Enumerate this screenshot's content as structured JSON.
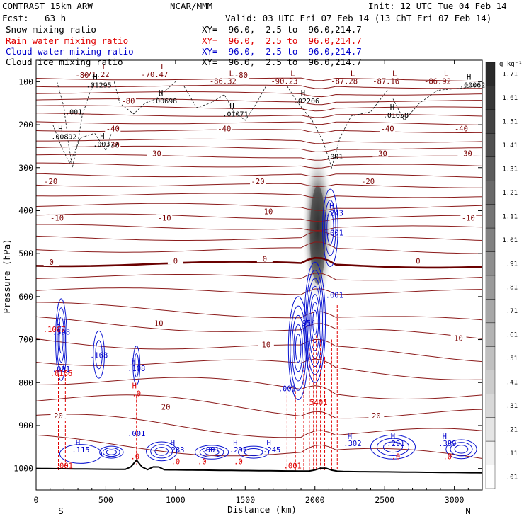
{
  "header": {
    "title": "CONTRAST 15km ARW",
    "fcst_label": "Fcst:",
    "fcst_value": "63 h",
    "center": "NCAR/MMM",
    "init": "Init: 12 UTC Tue 04 Feb 14",
    "valid": "Valid: 03 UTC Fri 07 Feb 14 (13 ChT Fri 07 Feb 14)"
  },
  "fields": [
    {
      "name": "Snow mixing ratio",
      "xy": "XY=  96.0,  2.5 to  96.0,214.7",
      "color": "#000000"
    },
    {
      "name": "Rain water mixing ratio",
      "xy": "XY=  96.0,  2.5 to  96.0,214.7",
      "color": "#e00000"
    },
    {
      "name": "Cloud water mixing ratio",
      "xy": "XY=  96.0,  2.5 to  96.0,214.7",
      "color": "#0000cc"
    },
    {
      "name": "Cloud ice mixing ratio",
      "xy": "XY=  96.0,  2.5 to  96.0,214.7",
      "color": "#000000"
    }
  ],
  "chart_data": {
    "type": "heatmap",
    "xlabel": "Distance (km)",
    "ylabel": "Pressure (hPa)",
    "xlim": [
      0,
      3200
    ],
    "ylim": [
      1050,
      50
    ],
    "x_ticks": [
      0,
      500,
      1000,
      1500,
      2000,
      2500,
      3000
    ],
    "y_ticks": [
      100,
      200,
      300,
      400,
      500,
      600,
      700,
      800,
      900,
      1000
    ],
    "x_ends": {
      "left": "S",
      "right": "N"
    },
    "colorbar": {
      "unit": "g kg⁻¹",
      "ticks": [
        1.71,
        1.61,
        1.51,
        1.41,
        1.31,
        1.21,
        1.11,
        1.01,
        0.91,
        0.81,
        0.71,
        0.61,
        0.51,
        0.41,
        0.31,
        0.21,
        0.11,
        0.01
      ],
      "tick_labels": [
        "1.71",
        "1.61",
        "1.51",
        "1.41",
        "1.31",
        "1.21",
        "1.11",
        "1.01",
        ".91",
        ".81",
        ".71",
        ".61",
        ".51",
        ".41",
        ".31",
        ".21",
        ".11",
        ".01"
      ]
    },
    "shaded_snow": {
      "x": 2020,
      "p_top": 220,
      "p_bottom": 590,
      "peak_p": 440,
      "peak_value": 1.0
    },
    "temperature_contour_labels": [
      {
        "x": 330,
        "p": 88,
        "text": "-80"
      },
      {
        "x": 1470,
        "p": 88,
        "text": "-80"
      },
      {
        "x": 660,
        "p": 148,
        "text": "-80"
      },
      {
        "x": 550,
        "p": 212,
        "text": "-40"
      },
      {
        "x": 1350,
        "p": 212,
        "text": "-40"
      },
      {
        "x": 2520,
        "p": 212,
        "text": "-40"
      },
      {
        "x": 3050,
        "p": 212,
        "text": "-40"
      },
      {
        "x": 550,
        "p": 250,
        "text": "-30"
      },
      {
        "x": 850,
        "p": 270,
        "text": "-30"
      },
      {
        "x": 2470,
        "p": 270,
        "text": "-30"
      },
      {
        "x": 3080,
        "p": 270,
        "text": "-30"
      },
      {
        "x": 105,
        "p": 335,
        "text": "-20"
      },
      {
        "x": 1590,
        "p": 335,
        "text": "-20"
      },
      {
        "x": 2380,
        "p": 335,
        "text": "-20"
      },
      {
        "x": 150,
        "p": 420,
        "text": "-10"
      },
      {
        "x": 920,
        "p": 420,
        "text": "-10"
      },
      {
        "x": 1650,
        "p": 405,
        "text": "-10"
      },
      {
        "x": 3100,
        "p": 420,
        "text": "-10"
      },
      {
        "x": 110,
        "p": 523,
        "text": "0"
      },
      {
        "x": 1000,
        "p": 520,
        "text": "0"
      },
      {
        "x": 1640,
        "p": 515,
        "text": "0"
      },
      {
        "x": 2740,
        "p": 520,
        "text": "0"
      },
      {
        "x": 880,
        "p": 665,
        "text": "10"
      },
      {
        "x": 1650,
        "p": 715,
        "text": "10"
      },
      {
        "x": 3030,
        "p": 700,
        "text": "10"
      },
      {
        "x": 160,
        "p": 880,
        "text": "20"
      },
      {
        "x": 930,
        "p": 860,
        "text": "20"
      },
      {
        "x": 2440,
        "p": 880,
        "text": "20"
      }
    ],
    "low_labels": [
      {
        "x": 430,
        "p": 85,
        "text": "L",
        "value": "-71.22"
      },
      {
        "x": 850,
        "p": 85,
        "text": "L",
        "value": "-70.47"
      },
      {
        "x": 1340,
        "p": 100,
        "text": "L",
        "value": "-86.32"
      },
      {
        "x": 1780,
        "p": 100,
        "text": "L",
        "value": "-90.23"
      },
      {
        "x": 2210,
        "p": 100,
        "text": "L",
        "value": "-87.28"
      },
      {
        "x": 2510,
        "p": 100,
        "text": "L",
        "value": "-87.16"
      },
      {
        "x": 2880,
        "p": 100,
        "text": "L",
        "value": "-86.92"
      }
    ],
    "snow_max_labels": [
      {
        "x": 450,
        "p": 110,
        "text": "H",
        "value": ".01295"
      },
      {
        "x": 920,
        "p": 147,
        "text": "H",
        "value": ".00698"
      },
      {
        "x": 1430,
        "p": 178,
        "text": "H",
        "value": ".01071"
      },
      {
        "x": 1940,
        "p": 147,
        "text": "H",
        "value": ".02206"
      },
      {
        "x": 2580,
        "p": 180,
        "text": "H",
        "value": ".01658"
      },
      {
        "x": 3130,
        "p": 110,
        "text": "H",
        "value": ".00062"
      },
      {
        "x": 200,
        "p": 230,
        "text": "H",
        "value": ".00892"
      },
      {
        "x": 500,
        "p": 248,
        "text": "H",
        "value": ".00377"
      }
    ],
    "snow_contour_labels": [
      {
        "x": 270,
        "p": 176,
        "text": ".001"
      },
      {
        "x": 2140,
        "p": 280,
        "text": ".001"
      }
    ],
    "cloud_water_labels": [
      {
        "x": 180,
        "p": 688,
        "text": ".598",
        "h": true
      },
      {
        "x": 450,
        "p": 743,
        "text": ".168"
      },
      {
        "x": 720,
        "p": 773,
        "text": ".108",
        "h": true
      },
      {
        "x": 2140,
        "p": 412,
        "text": ".243",
        "h": true
      },
      {
        "x": 2140,
        "p": 458,
        "text": ".001"
      },
      {
        "x": 2140,
        "p": 603,
        "text": ".001"
      },
      {
        "x": 1940,
        "p": 668,
        "text": ".954"
      },
      {
        "x": 1800,
        "p": 820,
        "text": ".001"
      },
      {
        "x": 720,
        "p": 925,
        "text": ".001"
      },
      {
        "x": 180,
        "p": 775,
        "text": ".001"
      },
      {
        "x": 320,
        "p": 963,
        "text": ".115",
        "h": true
      },
      {
        "x": 1000,
        "p": 963,
        "text": ".283",
        "h": true
      },
      {
        "x": 1250,
        "p": 963,
        "text": ".001"
      },
      {
        "x": 1450,
        "p": 963,
        "text": ".295",
        "h": true
      },
      {
        "x": 1690,
        "p": 963,
        "text": ".245",
        "h": true
      },
      {
        "x": 2270,
        "p": 948,
        "text": ".302",
        "h": true
      },
      {
        "x": 2580,
        "p": 948,
        "text": ".291",
        "h": true
      },
      {
        "x": 2950,
        "p": 948,
        "text": ".389",
        "h": true
      }
    ],
    "rain_labels": [
      {
        "x": 130,
        "p": 683,
        "text": ".1067"
      },
      {
        "x": 180,
        "p": 785,
        "text": ".0166"
      },
      {
        "x": 720,
        "p": 832,
        "text": ".0",
        "h": true
      },
      {
        "x": 2010,
        "p": 852,
        "text": ".5401"
      },
      {
        "x": 200,
        "p": 1000,
        "text": ".001"
      },
      {
        "x": 710,
        "p": 978,
        "text": ".0"
      },
      {
        "x": 1000,
        "p": 990,
        "text": ".0"
      },
      {
        "x": 1190,
        "p": 990,
        "text": ".0"
      },
      {
        "x": 1450,
        "p": 990,
        "text": ".0"
      },
      {
        "x": 1840,
        "p": 1000,
        "text": ".001"
      },
      {
        "x": 2580,
        "p": 978,
        "text": ".0"
      },
      {
        "x": 2950,
        "p": 978,
        "text": ".0"
      }
    ]
  }
}
